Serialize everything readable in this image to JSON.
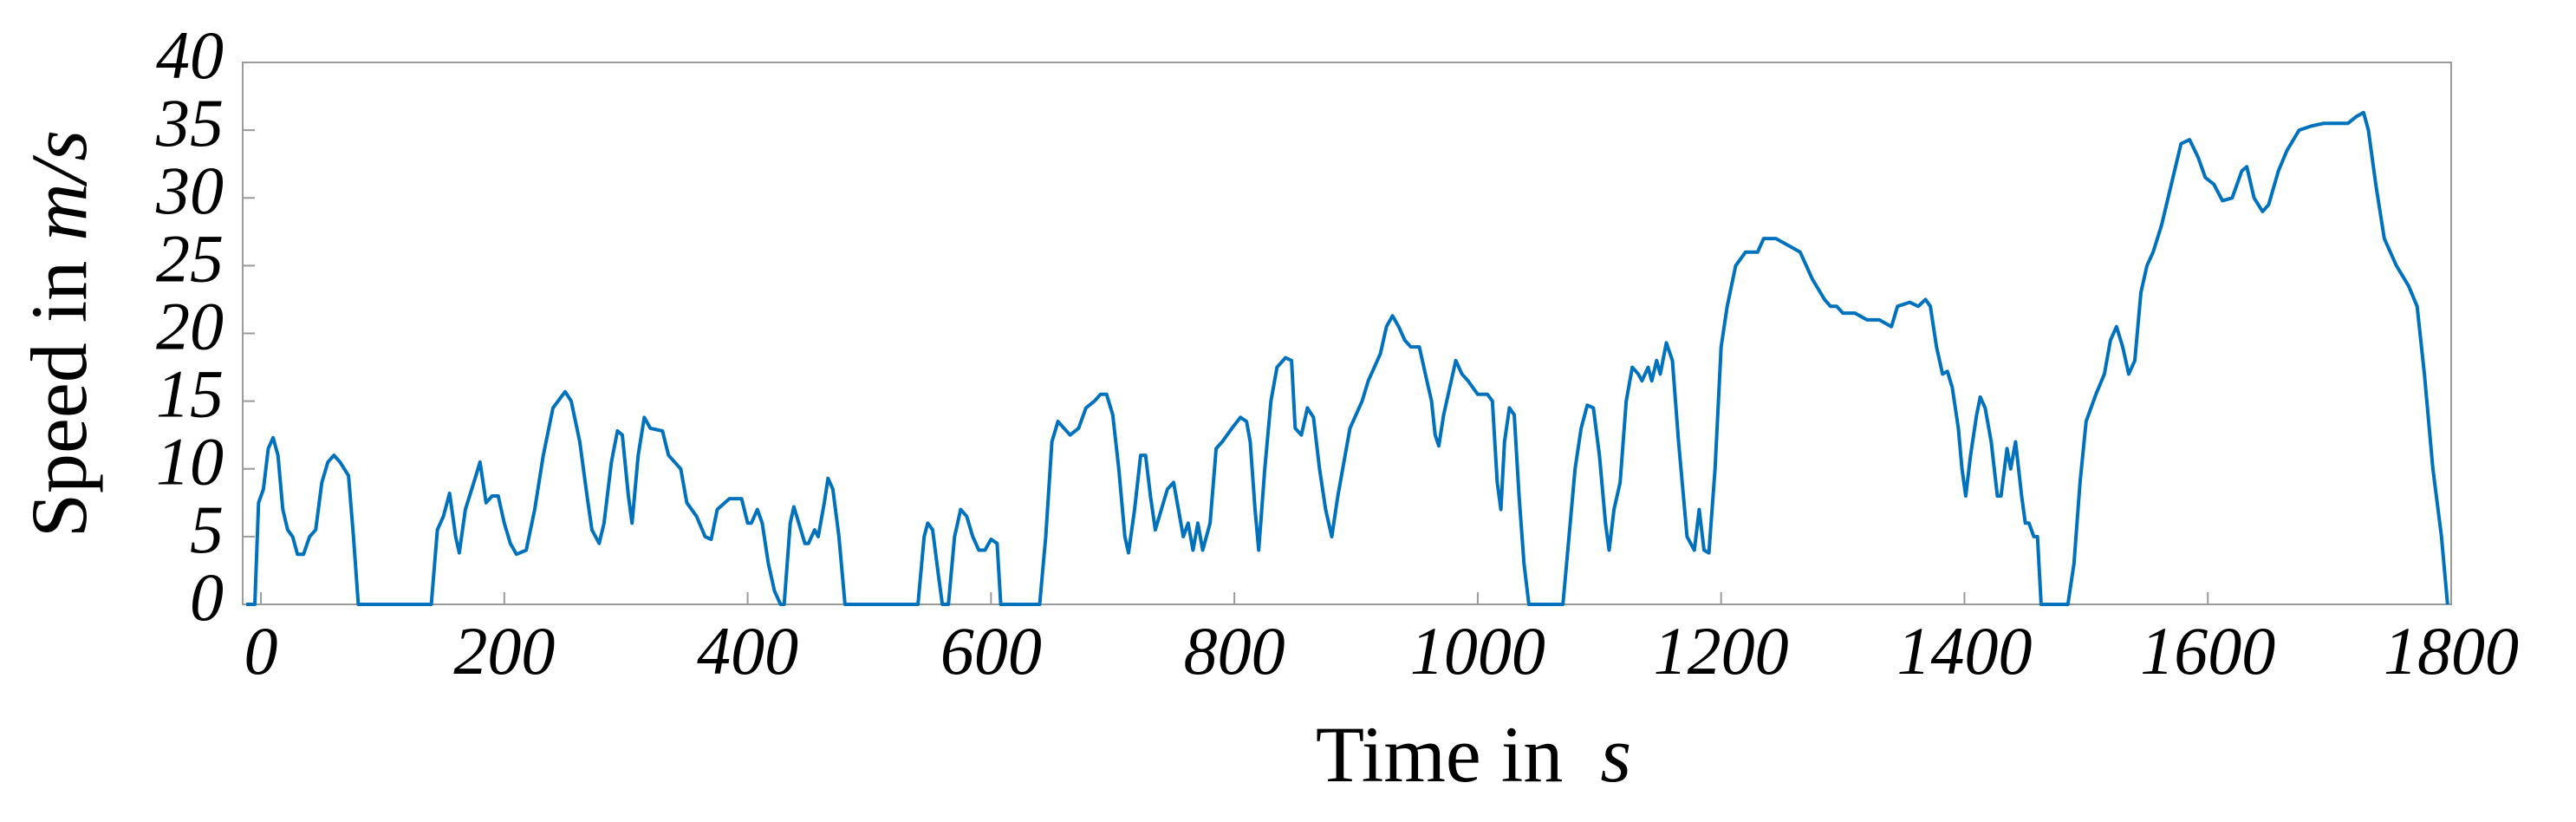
{
  "chart_data": {
    "type": "line",
    "xlabel": {
      "text": "Time in ",
      "unit": "s"
    },
    "ylabel": {
      "text": "Speed in ",
      "unit": "m/s"
    },
    "xlim": [
      -15,
      1800
    ],
    "xticks": [
      0,
      200,
      400,
      600,
      800,
      1000,
      1200,
      1400,
      1600,
      1800
    ],
    "ylim": [
      0,
      40
    ],
    "yticks": [
      0,
      5,
      10,
      15,
      20,
      25,
      30,
      35,
      40
    ],
    "series": [
      {
        "color": "#0072bd",
        "x": [
          -12,
          -5,
          -2,
          2,
          6,
          10,
          14,
          18,
          22,
          26,
          30,
          35,
          40,
          45,
          50,
          55,
          60,
          65,
          72,
          76,
          80,
          140,
          145,
          150,
          155,
          160,
          163,
          168,
          175,
          180,
          185,
          190,
          195,
          200,
          205,
          210,
          218,
          225,
          232,
          240,
          250,
          255,
          262,
          268,
          272,
          278,
          282,
          288,
          293,
          297,
          302,
          305,
          310,
          315,
          320,
          330,
          335,
          345,
          350,
          358,
          365,
          370,
          375,
          385,
          395,
          400,
          403,
          408,
          412,
          417,
          422,
          427,
          430,
          435,
          438,
          442,
          447,
          450,
          455,
          458,
          463,
          466,
          470,
          475,
          480,
          540,
          545,
          548,
          552,
          557,
          560,
          565,
          570,
          575,
          580,
          585,
          590,
          595,
          600,
          605,
          608,
          640,
          645,
          650,
          655,
          660,
          665,
          672,
          678,
          685,
          690,
          695,
          700,
          705,
          710,
          713,
          718,
          723,
          727,
          731,
          735,
          740,
          745,
          750,
          754,
          758,
          762,
          766,
          770,
          774,
          780,
          785,
          790,
          798,
          805,
          810,
          813,
          817,
          820,
          825,
          830,
          835,
          842,
          847,
          850,
          855,
          860,
          865,
          870,
          875,
          880,
          885,
          890,
          895,
          900,
          905,
          910,
          915,
          920,
          925,
          930,
          935,
          940,
          945,
          952,
          957,
          962,
          965,
          968,
          972,
          977,
          982,
          987,
          992,
          1000,
          1008,
          1012,
          1016,
          1019,
          1022,
          1026,
          1030,
          1034,
          1038,
          1042,
          1070,
          1075,
          1080,
          1085,
          1090,
          1095,
          1100,
          1105,
          1108,
          1112,
          1117,
          1122,
          1127,
          1132,
          1135,
          1140,
          1143,
          1147,
          1150,
          1155,
          1160,
          1165,
          1168,
          1172,
          1178,
          1182,
          1186,
          1190,
          1195,
          1200,
          1205,
          1212,
          1220,
          1230,
          1235,
          1245,
          1255,
          1265,
          1275,
          1285,
          1290,
          1295,
          1300,
          1310,
          1320,
          1330,
          1340,
          1345,
          1355,
          1362,
          1368,
          1372,
          1377,
          1382,
          1386,
          1390,
          1395,
          1398,
          1401,
          1405,
          1410,
          1413,
          1417,
          1422,
          1427,
          1430,
          1435,
          1438,
          1442,
          1447,
          1450,
          1453,
          1457,
          1460,
          1463,
          1485,
          1490,
          1495,
          1500,
          1508,
          1515,
          1520,
          1525,
          1530,
          1535,
          1540,
          1545,
          1550,
          1555,
          1562,
          1570,
          1578,
          1585,
          1592,
          1598,
          1605,
          1612,
          1620,
          1628,
          1632,
          1638,
          1645,
          1650,
          1658,
          1665,
          1675,
          1685,
          1695,
          1705,
          1715,
          1722,
          1728,
          1732,
          1738,
          1745,
          1755,
          1765,
          1772,
          1778,
          1785,
          1792,
          1797
        ],
        "values": [
          0,
          0,
          7.5,
          8.5,
          11.5,
          12.3,
          11,
          7,
          5.5,
          5,
          3.7,
          3.7,
          5,
          5.5,
          9,
          10.5,
          11,
          10.5,
          9.5,
          5,
          0,
          0,
          5.5,
          6.5,
          8.2,
          5,
          3.8,
          7,
          9,
          10.5,
          7.5,
          8,
          8,
          6,
          4.5,
          3.7,
          4,
          7,
          11,
          14.5,
          15.7,
          15,
          12,
          8,
          5.5,
          4.5,
          6,
          10.5,
          12.8,
          12.5,
          8,
          6,
          11,
          13.8,
          13,
          12.8,
          11,
          10,
          7.5,
          6.5,
          5,
          4.8,
          7,
          7.8,
          7.8,
          6,
          6,
          7,
          6,
          3,
          1,
          0,
          0,
          6,
          7.2,
          6,
          4.5,
          4.5,
          5.5,
          5,
          7.5,
          9.3,
          8.5,
          5,
          0,
          0,
          5,
          6,
          5.5,
          2,
          0,
          0,
          5,
          7,
          6.5,
          5,
          4,
          4,
          4.8,
          4.5,
          0,
          0,
          5,
          12,
          13.5,
          13,
          12.5,
          13,
          14.5,
          15,
          15.5,
          15.5,
          14,
          10,
          5,
          3.8,
          7,
          11,
          11,
          8,
          5.5,
          7,
          8.5,
          9,
          7,
          5,
          6,
          4,
          6,
          4,
          6,
          11.5,
          12,
          13,
          13.8,
          13.5,
          12,
          7,
          4,
          10,
          15,
          17.5,
          18.2,
          18,
          13,
          12.5,
          14.5,
          13.8,
          10,
          7,
          5,
          8,
          10.5,
          13,
          14,
          15,
          16.5,
          17.5,
          18.5,
          20.5,
          21.3,
          20.5,
          19.5,
          19,
          19,
          17,
          15,
          12.5,
          11.7,
          14,
          16,
          18,
          17,
          16.5,
          15.5,
          15.5,
          15,
          9,
          7,
          12,
          14.5,
          14,
          8,
          3,
          0,
          0,
          5,
          10,
          13,
          14.7,
          14.5,
          11,
          6,
          4,
          7,
          9,
          15,
          17.5,
          17,
          16.5,
          17.5,
          16.5,
          18,
          17,
          19.3,
          18,
          12,
          9,
          5,
          4,
          7,
          4,
          3.8,
          10,
          19,
          22,
          25,
          26,
          26,
          27,
          27,
          26.5,
          26,
          24,
          22.5,
          22,
          22,
          21.5,
          21.5,
          21,
          21,
          20.5,
          22,
          22.3,
          22,
          22.5,
          22,
          19,
          17,
          17.2,
          16,
          13,
          10,
          8,
          11,
          14,
          15.3,
          14.5,
          12,
          8,
          8,
          11.5,
          10,
          12,
          8,
          6,
          6,
          5,
          5,
          0,
          0,
          3,
          9,
          13.5,
          15.5,
          17,
          19.5,
          20.5,
          19,
          17,
          18,
          23,
          25,
          26,
          28,
          31,
          34,
          34.3,
          33,
          31.5,
          31,
          29.8,
          30,
          32,
          32.3,
          30,
          29,
          29.5,
          32,
          33.5,
          35,
          35.3,
          35.5,
          35.5,
          35.5,
          36,
          36.3,
          35,
          31,
          27,
          25,
          23.5,
          22,
          17,
          10,
          5,
          0
        ]
      }
    ]
  }
}
